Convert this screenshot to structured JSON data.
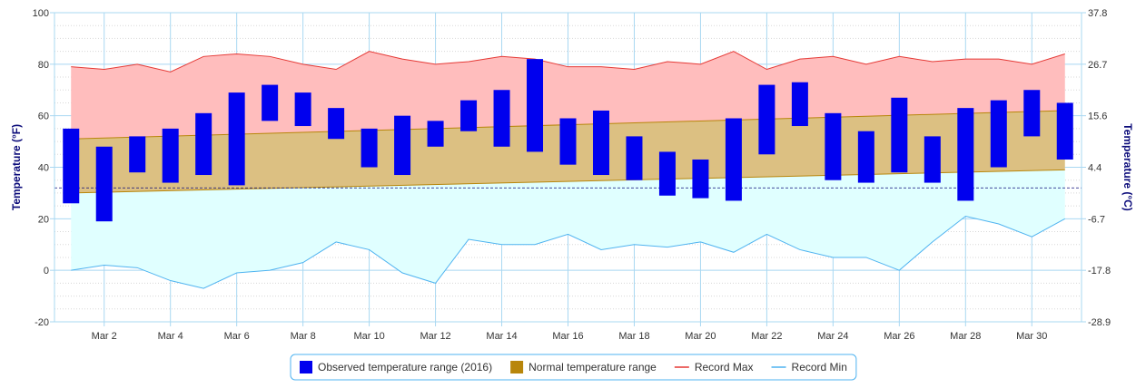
{
  "chart_data": {
    "type": "bar",
    "title": "",
    "y_left": {
      "label": "Temperature (°F)",
      "ylim": [
        -20,
        100
      ],
      "ticks": [
        -20,
        0,
        20,
        40,
        60,
        80,
        100
      ]
    },
    "y_right": {
      "label": "Temperature (°C)",
      "tick_labels": [
        "-28.9",
        "-17.8",
        "-6.7",
        "4.4",
        "15.6",
        "26.7",
        "37.8"
      ]
    },
    "x": {
      "days": [
        1,
        2,
        3,
        4,
        5,
        6,
        7,
        8,
        9,
        10,
        11,
        12,
        13,
        14,
        15,
        16,
        17,
        18,
        19,
        20,
        21,
        22,
        23,
        24,
        25,
        26,
        27,
        28,
        29,
        30,
        31
      ],
      "tick_labels": [
        "Mar 2",
        "Mar 4",
        "Mar 6",
        "Mar 8",
        "Mar 10",
        "Mar 12",
        "Mar 14",
        "Mar 16",
        "Mar 18",
        "Mar 20",
        "Mar 22",
        "Mar 24",
        "Mar 26",
        "Mar 28",
        "Mar 30"
      ],
      "tick_days": [
        2,
        4,
        6,
        8,
        10,
        12,
        14,
        16,
        18,
        20,
        22,
        24,
        26,
        28,
        30
      ]
    },
    "reference_line": 32,
    "series": [
      {
        "name": "Observed temperature range (2016)",
        "kind": "range-bar",
        "color": "#0000ee",
        "low": [
          26,
          19,
          38,
          34,
          37,
          33,
          58,
          56,
          51,
          40,
          37,
          48,
          54,
          48,
          46,
          41,
          37,
          35,
          29,
          28,
          27,
          45,
          56,
          35,
          34,
          38,
          34,
          27,
          40,
          52,
          43
        ],
        "high": [
          55,
          48,
          52,
          55,
          61,
          69,
          72,
          69,
          63,
          55,
          60,
          58,
          66,
          70,
          82,
          59,
          62,
          52,
          46,
          43,
          59,
          72,
          73,
          61,
          54,
          67,
          52,
          63,
          66,
          70,
          65
        ]
      },
      {
        "name": "Normal temperature range",
        "kind": "range-area",
        "color": "#b8860b",
        "low": [
          30,
          39
        ],
        "high": [
          51,
          62
        ]
      },
      {
        "name": "Record Max",
        "kind": "line",
        "color": "#e53935",
        "values": [
          79,
          78,
          80,
          77,
          83,
          84,
          83,
          80,
          78,
          85,
          82,
          80,
          81,
          83,
          82,
          79,
          79,
          78,
          81,
          80,
          85,
          78,
          82,
          83,
          80,
          83,
          81,
          82,
          82,
          80,
          84
        ]
      },
      {
        "name": "Record Min",
        "kind": "line",
        "color": "#4fb3f0",
        "values": [
          0,
          2,
          1,
          -4,
          -7,
          -1,
          0,
          3,
          11,
          8,
          -1,
          -5,
          12,
          10,
          10,
          14,
          8,
          10,
          9,
          11,
          7,
          14,
          8,
          5,
          5,
          0,
          11,
          21,
          18,
          13,
          20
        ]
      }
    ],
    "fills": {
      "record_max_fill": "#ffbdbd",
      "normal_fill": "#dcc082",
      "record_min_fill": "#e0ffff"
    },
    "legend": {
      "placement": "bottom-center",
      "items": [
        {
          "label": "Observed temperature range (2016)",
          "color": "#0000ee",
          "symbol": "square"
        },
        {
          "label": "Normal temperature range",
          "color": "#b8860b",
          "symbol": "square"
        },
        {
          "label": "Record Max",
          "color": "#e53935",
          "symbol": "line"
        },
        {
          "label": "Record Min",
          "color": "#4fb3f0",
          "symbol": "line"
        }
      ]
    },
    "grid": true
  }
}
